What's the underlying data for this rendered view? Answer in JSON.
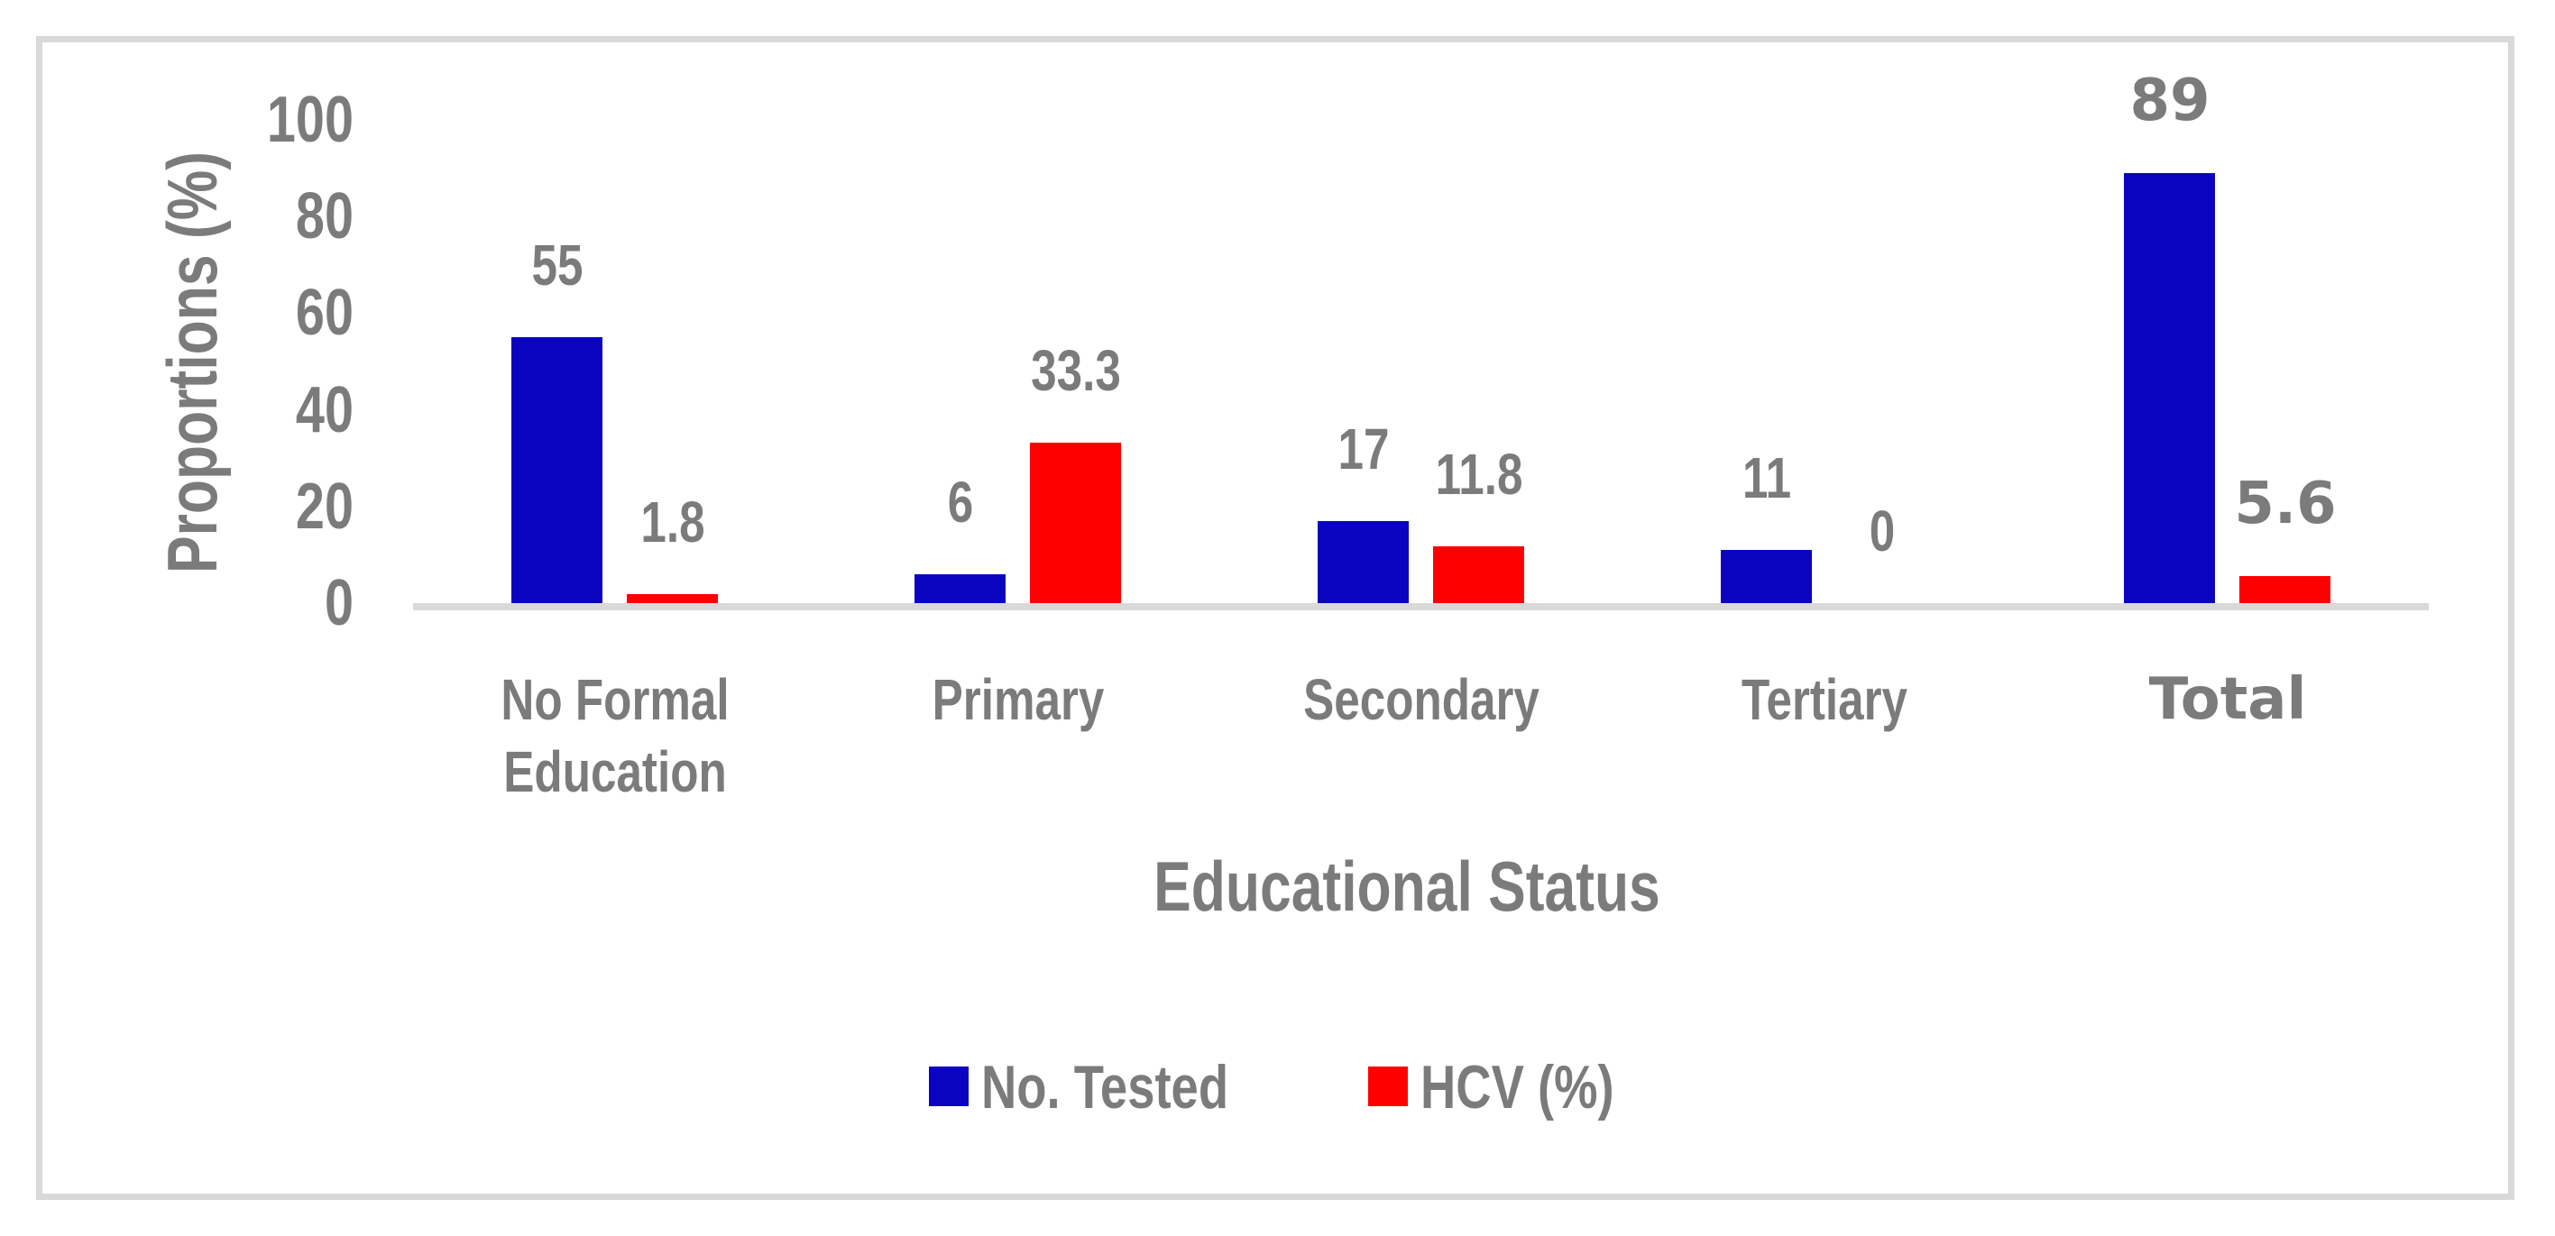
{
  "chart_data": {
    "type": "bar",
    "title": "",
    "xlabel": "Educational Status",
    "ylabel": "Proportions (%)",
    "categories": [
      "No Formal Education",
      "Primary",
      "Secondary",
      "Tertiary",
      "Total"
    ],
    "series": [
      {
        "name": "No. Tested",
        "color": "#0A04C0",
        "values": [
          55,
          6,
          17,
          11,
          89
        ],
        "labels": [
          "55",
          "6",
          "17",
          "11",
          "89"
        ]
      },
      {
        "name": "HCV (%)",
        "color": "#FF0000",
        "values": [
          1.8,
          33.3,
          11.8,
          0,
          5.6
        ],
        "labels": [
          "1.8",
          "33.3",
          "11.8",
          "0",
          "5.6"
        ]
      }
    ],
    "ylim": [
      0,
      100
    ],
    "yticks": [
      0,
      20,
      40,
      60,
      80,
      100
    ],
    "grid": false,
    "legend_position": "bottom",
    "alt_font_category_index": 4
  },
  "colors": {
    "bar_blue": "#0A04C0",
    "bar_red": "#FF0000",
    "text_gray": "#7B7B7B",
    "axis_gray": "#D9D9D9"
  }
}
